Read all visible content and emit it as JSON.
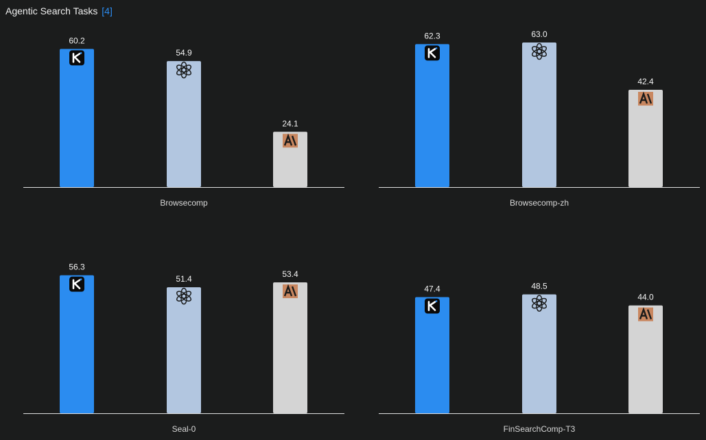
{
  "header": {
    "title": "Agentic Search Tasks",
    "reference": "[4]"
  },
  "colors": {
    "background": "#1b1c1c",
    "kimi": "#2b8cf0",
    "openai": "#b2c6e0",
    "anthropic": "#d4d4d4",
    "axis": "#e0e0e0",
    "link": "#2b8cf0"
  },
  "chart_data": [
    {
      "type": "bar",
      "title": "",
      "categories": [
        "Browsecomp"
      ],
      "series": [
        {
          "icon": "kimi-logo-icon",
          "values": [
            60.2
          ]
        },
        {
          "icon": "openai-logo-icon",
          "values": [
            54.9
          ]
        },
        {
          "icon": "anthropic-logo-icon",
          "values": [
            24.1
          ]
        }
      ],
      "xlabel": "Browsecomp",
      "ylim": [
        0,
        66
      ]
    },
    {
      "type": "bar",
      "title": "",
      "categories": [
        "Browsecomp-zh"
      ],
      "series": [
        {
          "icon": "kimi-logo-icon",
          "values": [
            62.3
          ]
        },
        {
          "icon": "openai-logo-icon",
          "values": [
            63.0
          ]
        },
        {
          "icon": "anthropic-logo-icon",
          "values": [
            42.4
          ]
        }
      ],
      "xlabel": "Browsecomp-zh",
      "ylim": [
        0,
        66
      ]
    },
    {
      "type": "bar",
      "title": "",
      "categories": [
        "Seal-0"
      ],
      "series": [
        {
          "icon": "kimi-logo-icon",
          "values": [
            56.3
          ]
        },
        {
          "icon": "openai-logo-icon",
          "values": [
            51.4
          ]
        },
        {
          "icon": "anthropic-logo-icon",
          "values": [
            53.4
          ]
        }
      ],
      "xlabel": "Seal-0",
      "ylim": [
        0,
        59
      ]
    },
    {
      "type": "bar",
      "title": "",
      "categories": [
        "FinSearchComp-T3"
      ],
      "series": [
        {
          "icon": "kimi-logo-icon",
          "values": [
            47.4
          ]
        },
        {
          "icon": "openai-logo-icon",
          "values": [
            48.5
          ]
        },
        {
          "icon": "anthropic-logo-icon",
          "values": [
            44.0
          ]
        }
      ],
      "xlabel": "FinSearchComp-T3",
      "ylim": [
        0,
        59
      ]
    }
  ]
}
